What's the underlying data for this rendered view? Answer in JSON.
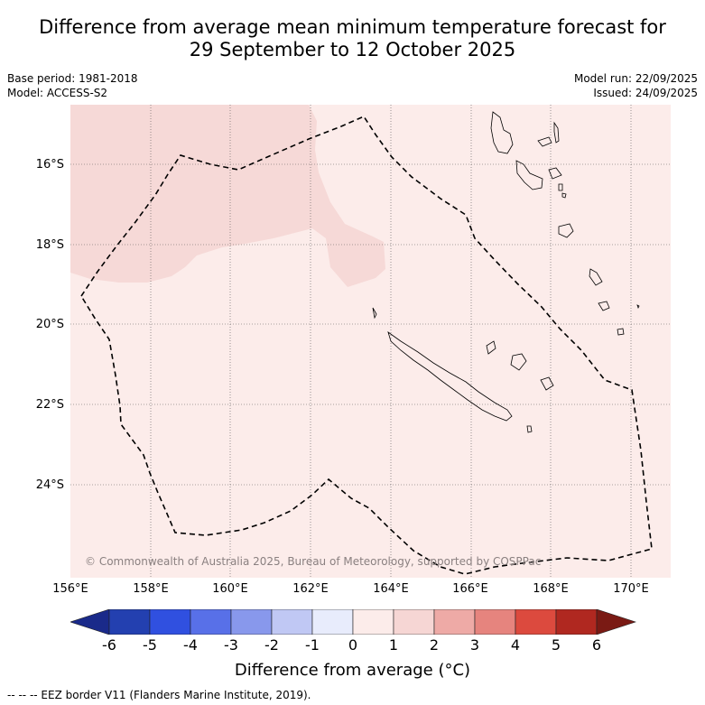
{
  "title_line1": "Difference from average mean minimum temperature forecast for",
  "title_line2": "29 September to 12 October 2025",
  "base_period": "Base period: 1981-2018",
  "model": "Model: ACCESS-S2",
  "model_run": "Model run: 22/09/2025",
  "issued": "Issued: 24/09/2025",
  "copyright": "© Commonwealth of Australia 2025, Bureau of Meteorology, supported by COSPPac",
  "lat_labels": [
    "16°S",
    "18°S",
    "20°S",
    "22°S",
    "24°S"
  ],
  "lon_labels": [
    "156°E",
    "158°E",
    "160°E",
    "162°E",
    "164°E",
    "166°E",
    "168°E",
    "170°E"
  ],
  "colorbar": {
    "title": "Difference from average (°C)",
    "ticks": [
      "-6",
      "-5",
      "-4",
      "-3",
      "-2",
      "-1",
      "0",
      "1",
      "2",
      "3",
      "4",
      "5",
      "6"
    ],
    "colors": [
      "#1a2a8a",
      "#2340b0",
      "#3050e0",
      "#5870e8",
      "#8898ec",
      "#c0c8f4",
      "#e8ecfc",
      "#fcecea",
      "#f6d6d4",
      "#eeaaa6",
      "#e6847e",
      "#dc4a3e",
      "#b02820",
      "#7a1a14"
    ]
  },
  "field_colors": {
    "base": "#fcecea",
    "warm": "#f6d9d7",
    "boundary": "#000000"
  },
  "footnote": "--  --  -- EEZ border V11 (Flanders Marine Institute, 2019)."
}
